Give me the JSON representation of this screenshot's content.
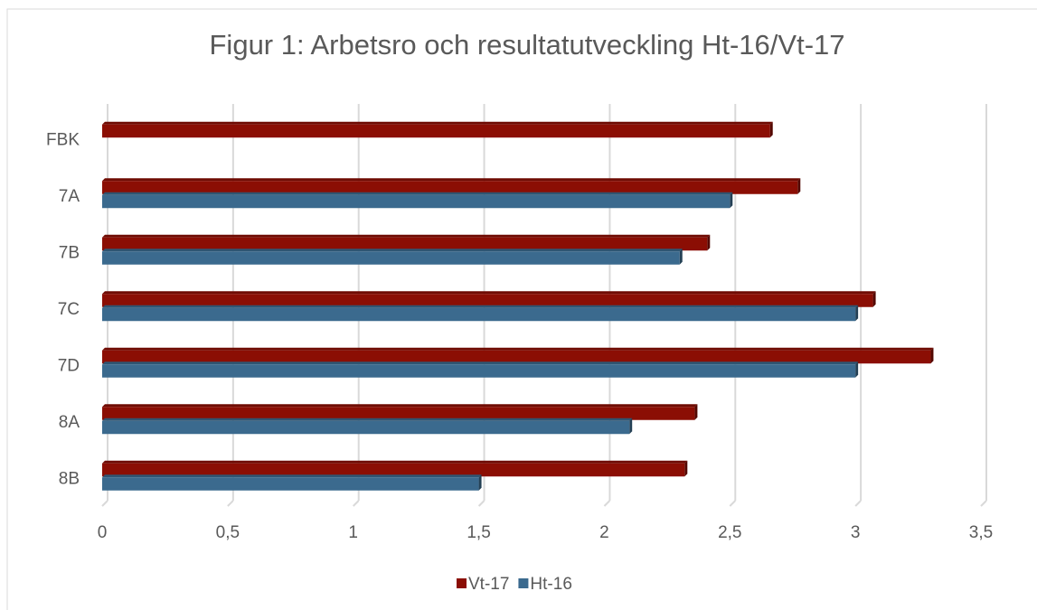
{
  "chart_data": {
    "type": "hbar",
    "title": "Figur 1: Arbetsro och resultatutveckling Ht-16/Vt-17",
    "categories": [
      "FBK",
      "7A",
      "7B",
      "7C",
      "7D",
      "8A",
      "8B"
    ],
    "series": [
      {
        "name": "Vt-17",
        "color": "#8b0e04",
        "values": [
          2.66,
          2.77,
          2.41,
          3.07,
          3.3,
          2.36,
          2.32
        ]
      },
      {
        "name": "Ht-16",
        "color": "#3b6a8e",
        "values": [
          null,
          2.5,
          2.3,
          3,
          3,
          2.1,
          1.5
        ]
      }
    ],
    "xlim": [
      0,
      3.5
    ],
    "xticks": [
      0,
      {
        "value": 0.5,
        "label": "0,5"
      },
      1,
      {
        "value": 1.5,
        "label": "1,5"
      },
      2,
      {
        "value": 2.5,
        "label": "2,5"
      },
      3,
      {
        "value": 3.5,
        "label": "3,5"
      }
    ],
    "grid": true,
    "legend": "bottom"
  }
}
